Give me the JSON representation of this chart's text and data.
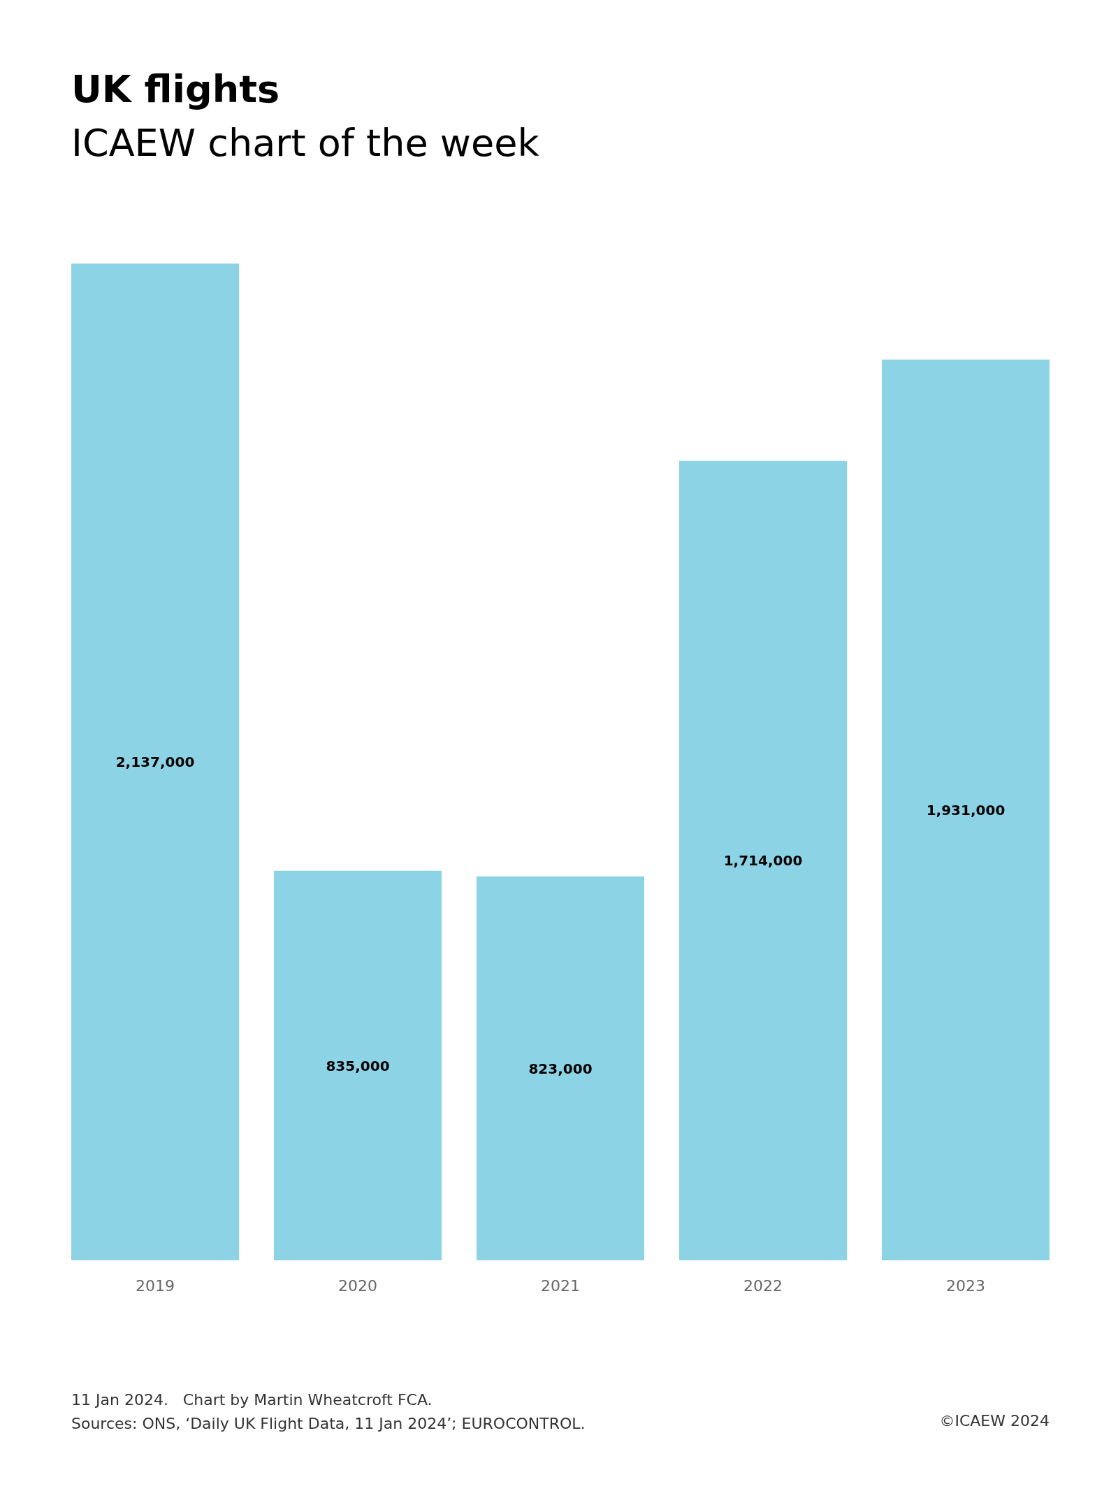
{
  "chart_data": {
    "type": "bar",
    "title": "UK flights",
    "subtitle": "ICAEW chart of the week",
    "categories": [
      "2019",
      "2020",
      "2021",
      "2022",
      "2023"
    ],
    "values": [
      2137000,
      835000,
      823000,
      1714000,
      1931000
    ],
    "color": "#8dd3e6",
    "value_labels": [
      "2,137,000",
      "835,000",
      "823,000",
      "1,714,000",
      "1,931,000"
    ],
    "annotations": [
      "11 Jan 2024.   Chart by Martin Wheatcroft FCA.",
      "Sources: ONS, ‘Daily UK Flight Data, 11 Jan 2024’; EUROCONTROL.",
      "©ICAEW 2024"
    ]
  }
}
